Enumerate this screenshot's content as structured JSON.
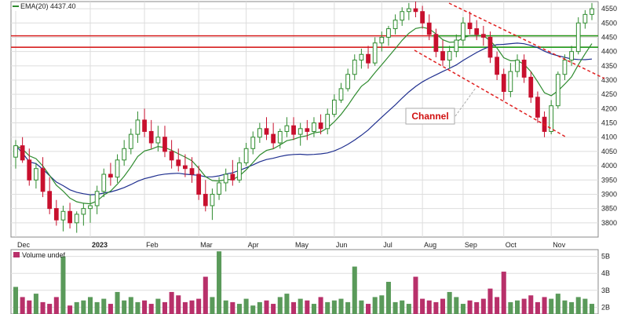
{
  "chart_data": [
    {
      "type": "candlestick",
      "legend": {
        "label": "EMA(20)",
        "value": "4437.40",
        "color": "#2e8b2e"
      },
      "y_ticks": [
        3800,
        3850,
        3900,
        3950,
        4000,
        4050,
        4100,
        4150,
        4200,
        4250,
        4300,
        4350,
        4400,
        4450,
        4500,
        4550
      ],
      "ylim": [
        3750,
        4575
      ],
      "x_ticks": [
        "Dec",
        "2023",
        "Feb",
        "Mar",
        "Apr",
        "May",
        "Jun",
        "Jul",
        "Aug",
        "Sep",
        "Oct",
        "Nov"
      ],
      "grid": true,
      "colors": {
        "up": "#2e8b2e",
        "down": "#c8102e",
        "ema20": "#2e8b2e",
        "ma": "#1f2f8f",
        "resistance": "#d62020",
        "support": "#20a020",
        "channel": "#e02020"
      },
      "horizontal_lines": [
        {
          "name": "resistance-1",
          "y": 4455,
          "color": "#d62020"
        },
        {
          "name": "support-1",
          "y": 4455,
          "color": "#20a020",
          "x_start": "Sep"
        },
        {
          "name": "resistance-2",
          "y": 4415,
          "color": "#d62020"
        },
        {
          "name": "support-2",
          "y": 4415,
          "color": "#20a020",
          "x_start": "Sep"
        }
      ],
      "annotation": {
        "text": "Channel",
        "color": "#d01010"
      },
      "candles": [
        {
          "d": "Dec",
          "o": 4030,
          "h": 4090,
          "l": 3990,
          "c": 4070
        },
        {
          "d": "Dec",
          "o": 4070,
          "h": 4100,
          "l": 4010,
          "c": 4020
        },
        {
          "d": "Dec",
          "o": 4020,
          "h": 4060,
          "l": 3930,
          "c": 3950
        },
        {
          "d": "Dec",
          "o": 3950,
          "h": 4010,
          "l": 3920,
          "c": 3990
        },
        {
          "d": "Dec",
          "o": 3990,
          "h": 4030,
          "l": 3890,
          "c": 3910
        },
        {
          "d": "Dec",
          "o": 3910,
          "h": 3960,
          "l": 3830,
          "c": 3850
        },
        {
          "d": "Dec",
          "o": 3850,
          "h": 3880,
          "l": 3790,
          "c": 3810
        },
        {
          "d": "Dec",
          "o": 3810,
          "h": 3860,
          "l": 3770,
          "c": 3840
        },
        {
          "d": "Dec",
          "o": 3840,
          "h": 3870,
          "l": 3780,
          "c": 3800
        },
        {
          "d": "Dec",
          "o": 3800,
          "h": 3840,
          "l": 3765,
          "c": 3830
        },
        {
          "d": "Dec",
          "o": 3830,
          "h": 3870,
          "l": 3790,
          "c": 3850
        },
        {
          "d": "2023",
          "o": 3850,
          "h": 3900,
          "l": 3800,
          "c": 3860
        },
        {
          "d": "2023",
          "o": 3860,
          "h": 3930,
          "l": 3830,
          "c": 3910
        },
        {
          "d": "2023",
          "o": 3910,
          "h": 3990,
          "l": 3890,
          "c": 3970
        },
        {
          "d": "2023",
          "o": 3970,
          "h": 4010,
          "l": 3930,
          "c": 3960
        },
        {
          "d": "2023",
          "o": 3960,
          "h": 4040,
          "l": 3940,
          "c": 4020
        },
        {
          "d": "2023",
          "o": 4020,
          "h": 4090,
          "l": 4000,
          "c": 4060
        },
        {
          "d": "2023",
          "o": 4060,
          "h": 4130,
          "l": 4040,
          "c": 4110
        },
        {
          "d": "2023",
          "o": 4110,
          "h": 4190,
          "l": 4080,
          "c": 4160
        },
        {
          "d": "Feb",
          "o": 4160,
          "h": 4200,
          "l": 4100,
          "c": 4120
        },
        {
          "d": "Feb",
          "o": 4120,
          "h": 4160,
          "l": 4060,
          "c": 4080
        },
        {
          "d": "Feb",
          "o": 4080,
          "h": 4140,
          "l": 4050,
          "c": 4100
        },
        {
          "d": "Feb",
          "o": 4100,
          "h": 4140,
          "l": 4030,
          "c": 4050
        },
        {
          "d": "Feb",
          "o": 4050,
          "h": 4090,
          "l": 3990,
          "c": 4020
        },
        {
          "d": "Feb",
          "o": 4020,
          "h": 4060,
          "l": 3980,
          "c": 4000
        },
        {
          "d": "Feb",
          "o": 4000,
          "h": 4040,
          "l": 3960,
          "c": 3990
        },
        {
          "d": "Feb",
          "o": 3990,
          "h": 4030,
          "l": 3940,
          "c": 3970
        },
        {
          "d": "Mar",
          "o": 3970,
          "h": 4000,
          "l": 3880,
          "c": 3900
        },
        {
          "d": "Mar",
          "o": 3900,
          "h": 3950,
          "l": 3840,
          "c": 3860
        },
        {
          "d": "Mar",
          "o": 3860,
          "h": 3920,
          "l": 3810,
          "c": 3900
        },
        {
          "d": "Mar",
          "o": 3900,
          "h": 3960,
          "l": 3880,
          "c": 3940
        },
        {
          "d": "Mar",
          "o": 3940,
          "h": 3990,
          "l": 3910,
          "c": 3970
        },
        {
          "d": "Mar",
          "o": 3970,
          "h": 4020,
          "l": 3930,
          "c": 3950
        },
        {
          "d": "Mar",
          "o": 3950,
          "h": 4030,
          "l": 3940,
          "c": 4010
        },
        {
          "d": "Apr",
          "o": 4010,
          "h": 4080,
          "l": 4000,
          "c": 4060
        },
        {
          "d": "Apr",
          "o": 4060,
          "h": 4120,
          "l": 4040,
          "c": 4100
        },
        {
          "d": "Apr",
          "o": 4100,
          "h": 4150,
          "l": 4080,
          "c": 4130
        },
        {
          "d": "Apr",
          "o": 4130,
          "h": 4170,
          "l": 4090,
          "c": 4110
        },
        {
          "d": "Apr",
          "o": 4110,
          "h": 4150,
          "l": 4060,
          "c": 4080
        },
        {
          "d": "Apr",
          "o": 4080,
          "h": 4130,
          "l": 4060,
          "c": 4120
        },
        {
          "d": "Apr",
          "o": 4120,
          "h": 4170,
          "l": 4100,
          "c": 4140
        },
        {
          "d": "May",
          "o": 4140,
          "h": 4170,
          "l": 4090,
          "c": 4110
        },
        {
          "d": "May",
          "o": 4110,
          "h": 4150,
          "l": 4070,
          "c": 4130
        },
        {
          "d": "May",
          "o": 4130,
          "h": 4160,
          "l": 4090,
          "c": 4120
        },
        {
          "d": "May",
          "o": 4120,
          "h": 4170,
          "l": 4100,
          "c": 4150
        },
        {
          "d": "May",
          "o": 4150,
          "h": 4180,
          "l": 4110,
          "c": 4130
        },
        {
          "d": "May",
          "o": 4130,
          "h": 4200,
          "l": 4110,
          "c": 4180
        },
        {
          "d": "Jun",
          "o": 4180,
          "h": 4250,
          "l": 4170,
          "c": 4230
        },
        {
          "d": "Jun",
          "o": 4230,
          "h": 4290,
          "l": 4220,
          "c": 4270
        },
        {
          "d": "Jun",
          "o": 4270,
          "h": 4340,
          "l": 4260,
          "c": 4320
        },
        {
          "d": "Jun",
          "o": 4320,
          "h": 4390,
          "l": 4300,
          "c": 4370
        },
        {
          "d": "Jun",
          "o": 4370,
          "h": 4410,
          "l": 4340,
          "c": 4390
        },
        {
          "d": "Jun",
          "o": 4390,
          "h": 4420,
          "l": 4340,
          "c": 4360
        },
        {
          "d": "Jun",
          "o": 4360,
          "h": 4450,
          "l": 4350,
          "c": 4430
        },
        {
          "d": "Jul",
          "o": 4430,
          "h": 4470,
          "l": 4400,
          "c": 4450
        },
        {
          "d": "Jul",
          "o": 4450,
          "h": 4490,
          "l": 4420,
          "c": 4480
        },
        {
          "d": "Jul",
          "o": 4480,
          "h": 4530,
          "l": 4460,
          "c": 4510
        },
        {
          "d": "Jul",
          "o": 4510,
          "h": 4555,
          "l": 4490,
          "c": 4540
        },
        {
          "d": "Jul",
          "o": 4540,
          "h": 4570,
          "l": 4510,
          "c": 4550
        },
        {
          "d": "Jul",
          "o": 4550,
          "h": 4575,
          "l": 4520,
          "c": 4540
        },
        {
          "d": "Aug",
          "o": 4540,
          "h": 4560,
          "l": 4480,
          "c": 4500
        },
        {
          "d": "Aug",
          "o": 4500,
          "h": 4530,
          "l": 4440,
          "c": 4460
        },
        {
          "d": "Aug",
          "o": 4460,
          "h": 4480,
          "l": 4380,
          "c": 4400
        },
        {
          "d": "Aug",
          "o": 4400,
          "h": 4440,
          "l": 4350,
          "c": 4370
        },
        {
          "d": "Aug",
          "o": 4370,
          "h": 4420,
          "l": 4340,
          "c": 4400
        },
        {
          "d": "Aug",
          "o": 4400,
          "h": 4460,
          "l": 4380,
          "c": 4440
        },
        {
          "d": "Sep",
          "o": 4440,
          "h": 4520,
          "l": 4420,
          "c": 4500
        },
        {
          "d": "Sep",
          "o": 4500,
          "h": 4540,
          "l": 4460,
          "c": 4480
        },
        {
          "d": "Sep",
          "o": 4480,
          "h": 4510,
          "l": 4440,
          "c": 4460
        },
        {
          "d": "Sep",
          "o": 4460,
          "h": 4490,
          "l": 4420,
          "c": 4450
        },
        {
          "d": "Sep",
          "o": 4450,
          "h": 4470,
          "l": 4360,
          "c": 4380
        },
        {
          "d": "Sep",
          "o": 4380,
          "h": 4400,
          "l": 4300,
          "c": 4320
        },
        {
          "d": "Oct",
          "o": 4320,
          "h": 4340,
          "l": 4230,
          "c": 4260
        },
        {
          "d": "Oct",
          "o": 4260,
          "h": 4360,
          "l": 4240,
          "c": 4330
        },
        {
          "d": "Oct",
          "o": 4330,
          "h": 4390,
          "l": 4310,
          "c": 4370
        },
        {
          "d": "Oct",
          "o": 4370,
          "h": 4390,
          "l": 4290,
          "c": 4310
        },
        {
          "d": "Oct",
          "o": 4310,
          "h": 4330,
          "l": 4220,
          "c": 4240
        },
        {
          "d": "Oct",
          "o": 4240,
          "h": 4260,
          "l": 4150,
          "c": 4170
        },
        {
          "d": "Oct",
          "o": 4170,
          "h": 4190,
          "l": 4100,
          "c": 4120
        },
        {
          "d": "Nov",
          "o": 4120,
          "h": 4230,
          "l": 4110,
          "c": 4210
        },
        {
          "d": "Nov",
          "o": 4210,
          "h": 4330,
          "l": 4200,
          "c": 4320
        },
        {
          "d": "Nov",
          "o": 4320,
          "h": 4390,
          "l": 4300,
          "c": 4370
        },
        {
          "d": "Nov",
          "o": 4370,
          "h": 4420,
          "l": 4350,
          "c": 4400
        },
        {
          "d": "Nov",
          "o": 4400,
          "h": 4520,
          "l": 4390,
          "c": 4500
        },
        {
          "d": "Nov",
          "o": 4500,
          "h": 4545,
          "l": 4480,
          "c": 4530
        },
        {
          "d": "Nov",
          "o": 4530,
          "h": 4570,
          "l": 4510,
          "c": 4550
        }
      ]
    },
    {
      "type": "bar",
      "title": "Volume undef",
      "y_ticks": [
        "2B",
        "3B",
        "4B",
        "5B"
      ],
      "y_tick_values": [
        2,
        3,
        4,
        5
      ],
      "ylim": [
        1.6,
        5.4
      ],
      "colors": {
        "up": "#5a9a5a",
        "down": "#b8306a"
      },
      "values": [
        3.2,
        2.6,
        2.4,
        2.8,
        2.3,
        2.2,
        2.6,
        5.0,
        2.1,
        2.3,
        2.4,
        2.6,
        2.3,
        2.5,
        2.2,
        2.9,
        2.4,
        2.6,
        2.3,
        2.4,
        2.2,
        2.5,
        2.3,
        2.9,
        2.7,
        2.3,
        2.4,
        2.5,
        3.8,
        2.6,
        5.3,
        2.4,
        2.3,
        2.2,
        2.5,
        2.1,
        2.3,
        2.4,
        2.2,
        2.6,
        2.8,
        2.3,
        2.5,
        2.4,
        2.2,
        2.6,
        2.3,
        2.4,
        2.5,
        2.3,
        4.4,
        2.4,
        2.2,
        2.6,
        2.7,
        3.5,
        2.3,
        2.4,
        2.2,
        3.8,
        2.5,
        2.4,
        2.3,
        2.5,
        2.9,
        2.6,
        2.2,
        2.4,
        2.3,
        2.5,
        3.1,
        2.6,
        4.1,
        2.3,
        2.4,
        2.5,
        2.7,
        2.3,
        2.6,
        2.5,
        2.8,
        2.4,
        2.3,
        2.6,
        2.5,
        2.2
      ]
    }
  ]
}
